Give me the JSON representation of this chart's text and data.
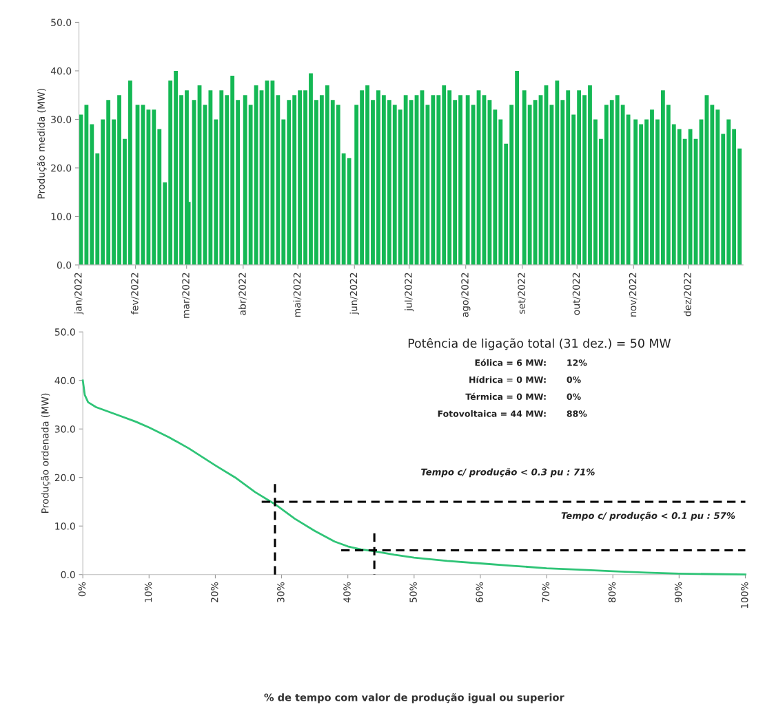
{
  "chart_data": [
    {
      "type": "bar",
      "ylabel": "Produção medida (MW)",
      "color": "#14b854",
      "x": [
        "2022-01-01",
        "2022-01-04",
        "2022-01-07",
        "2022-01-10",
        "2022-01-13",
        "2022-01-16",
        "2022-01-19",
        "2022-01-22",
        "2022-01-25",
        "2022-01-28",
        "2022-02-01",
        "2022-02-04",
        "2022-02-07",
        "2022-02-10",
        "2022-02-13",
        "2022-02-16",
        "2022-02-19",
        "2022-02-22",
        "2022-02-25",
        "2022-02-28",
        "2022-03-01",
        "2022-03-04",
        "2022-03-07",
        "2022-03-10",
        "2022-03-13",
        "2022-03-16",
        "2022-03-19",
        "2022-03-22",
        "2022-03-25",
        "2022-03-28",
        "2022-04-01",
        "2022-04-04",
        "2022-04-07",
        "2022-04-10",
        "2022-04-13",
        "2022-04-16",
        "2022-04-19",
        "2022-04-22",
        "2022-04-25",
        "2022-04-28",
        "2022-05-01",
        "2022-05-04",
        "2022-05-07",
        "2022-05-10",
        "2022-05-13",
        "2022-05-16",
        "2022-05-19",
        "2022-05-22",
        "2022-05-25",
        "2022-05-28",
        "2022-06-01",
        "2022-06-04",
        "2022-06-07",
        "2022-06-10",
        "2022-06-13",
        "2022-06-16",
        "2022-06-19",
        "2022-06-22",
        "2022-06-25",
        "2022-06-28",
        "2022-07-01",
        "2022-07-04",
        "2022-07-07",
        "2022-07-10",
        "2022-07-13",
        "2022-07-16",
        "2022-07-19",
        "2022-07-22",
        "2022-07-25",
        "2022-07-28",
        "2022-08-01",
        "2022-08-04",
        "2022-08-07",
        "2022-08-10",
        "2022-08-13",
        "2022-08-16",
        "2022-08-19",
        "2022-08-22",
        "2022-08-25",
        "2022-08-28",
        "2022-09-01",
        "2022-09-04",
        "2022-09-07",
        "2022-09-10",
        "2022-09-13",
        "2022-09-16",
        "2022-09-19",
        "2022-09-22",
        "2022-09-25",
        "2022-09-28",
        "2022-10-01",
        "2022-10-04",
        "2022-10-07",
        "2022-10-10",
        "2022-10-13",
        "2022-10-16",
        "2022-10-19",
        "2022-10-22",
        "2022-10-25",
        "2022-10-28",
        "2022-11-01",
        "2022-11-04",
        "2022-11-07",
        "2022-11-10",
        "2022-11-13",
        "2022-11-16",
        "2022-11-19",
        "2022-11-22",
        "2022-11-25",
        "2022-11-28",
        "2022-12-01",
        "2022-12-04",
        "2022-12-07",
        "2022-12-10",
        "2022-12-13",
        "2022-12-16",
        "2022-12-19",
        "2022-12-22",
        "2022-12-25",
        "2022-12-28"
      ],
      "values": [
        31,
        33,
        29,
        23,
        30,
        34,
        30,
        35,
        26,
        38,
        33,
        33,
        32,
        32,
        28,
        17,
        38,
        40,
        35,
        36,
        13,
        34,
        37,
        33,
        36,
        30,
        36,
        35,
        39,
        34,
        35,
        33,
        37,
        36,
        38,
        38,
        35,
        30,
        34,
        35,
        36,
        36,
        39.5,
        34,
        35,
        37,
        34,
        33,
        23,
        22,
        33,
        36,
        37,
        34,
        36,
        35,
        34,
        33,
        32,
        35,
        34,
        35,
        36,
        33,
        35,
        35,
        37,
        36,
        34,
        35,
        35,
        33,
        36,
        35,
        34,
        32,
        30,
        25,
        33,
        40,
        36,
        33,
        34,
        35,
        37,
        33,
        38,
        34,
        36,
        31,
        36,
        35,
        37,
        30,
        26,
        33,
        34,
        35,
        33,
        31,
        30,
        29,
        30,
        32,
        30,
        36,
        33,
        29,
        28,
        26,
        28,
        26,
        30,
        35,
        33,
        32,
        27,
        30,
        28,
        24
      ],
      "xlim": [
        "2022-01-01",
        "2022-12-31"
      ],
      "xticks": [
        {
          "value": "2022-01-01",
          "label": "jan/2022"
        },
        {
          "value": "2022-02-01",
          "label": "fev/2022"
        },
        {
          "value": "2022-03-01",
          "label": "mar/2022"
        },
        {
          "value": "2022-04-01",
          "label": "abr/2022"
        },
        {
          "value": "2022-05-01",
          "label": "mai/2022"
        },
        {
          "value": "2022-06-01",
          "label": "jun/2022"
        },
        {
          "value": "2022-07-01",
          "label": "jul/2022"
        },
        {
          "value": "2022-08-01",
          "label": "ago/2022"
        },
        {
          "value": "2022-09-01",
          "label": "set/2022"
        },
        {
          "value": "2022-10-01",
          "label": "out/2022"
        },
        {
          "value": "2022-11-01",
          "label": "nov/2022"
        },
        {
          "value": "2022-12-01",
          "label": "dez/2022"
        }
      ],
      "ylim": [
        0,
        50
      ],
      "yticks": [
        {
          "value": 0,
          "label": "0.0"
        },
        {
          "value": 10,
          "label": "10.0"
        },
        {
          "value": 20,
          "label": "20.0"
        },
        {
          "value": 30,
          "label": "30.0"
        },
        {
          "value": 40,
          "label": "40.0"
        },
        {
          "value": 50,
          "label": "50.0"
        }
      ],
      "grid": false,
      "legend": false
    },
    {
      "type": "line",
      "ylabel": "Produção ordenada (MW)",
      "xlabel": "% de tempo com valor de produção igual ou superior",
      "series": [
        {
          "color": "#2fc477",
          "x": [
            0,
            0.3,
            0.8,
            2,
            5,
            8,
            10,
            13,
            16,
            20,
            23,
            26,
            29,
            32,
            35,
            38,
            40,
            42,
            44,
            47,
            50,
            55,
            60,
            65,
            70,
            75,
            80,
            85,
            90,
            95,
            100
          ],
          "values": [
            40,
            37,
            35.5,
            34.5,
            33,
            31.5,
            30.3,
            28.3,
            26,
            22.5,
            20,
            17,
            14.5,
            11.5,
            9,
            6.8,
            5.8,
            5.2,
            4.8,
            4.1,
            3.5,
            2.8,
            2.3,
            1.8,
            1.3,
            1,
            0.7,
            0.4,
            0.2,
            0.1,
            0
          ]
        },
        {
          "color": "#000000",
          "line_style": "dashed",
          "x": [
            27,
            100
          ],
          "values": [
            15,
            15
          ]
        },
        {
          "color": "#000000",
          "line_style": "dashed",
          "x": [
            39,
            100
          ],
          "values": [
            5,
            5
          ]
        },
        {
          "color": "#000000",
          "line_style": "dashed",
          "x": [
            29,
            29
          ],
          "values": [
            0,
            19
          ]
        },
        {
          "color": "#000000",
          "line_style": "dashed",
          "x": [
            44,
            44
          ],
          "values": [
            8.5,
            0
          ]
        }
      ],
      "annotations": [
        "Potência de ligação total (31 dez.) = 50 MW",
        "Eólica = 6 MW:",
        "12%",
        "Hídrica = 0 MW:",
        "0%",
        "Térmica = 0 MW:",
        "0%",
        "Fotovoltaica = 44 MW:",
        "88%",
        "Tempo c/ produção < 0.3 pu : 71%",
        "Tempo c/ produção < 0.1 pu : 57%"
      ],
      "xlim": [
        0,
        100
      ],
      "xticks": [
        {
          "value": 0,
          "label": "0%"
        },
        {
          "value": 10,
          "label": "10%"
        },
        {
          "value": 20,
          "label": "20%"
        },
        {
          "value": 30,
          "label": "30%"
        },
        {
          "value": 40,
          "label": "40%"
        },
        {
          "value": 50,
          "label": "50%"
        },
        {
          "value": 60,
          "label": "60%"
        },
        {
          "value": 70,
          "label": "70%"
        },
        {
          "value": 80,
          "label": "80%"
        },
        {
          "value": 90,
          "label": "90%"
        },
        {
          "value": 100,
          "label": "100%"
        }
      ],
      "ylim": [
        0,
        50
      ],
      "yticks": [
        {
          "value": 0,
          "label": "0.0"
        },
        {
          "value": 10,
          "label": "10.0"
        },
        {
          "value": 20,
          "label": "20.0"
        },
        {
          "value": 30,
          "label": "30.0"
        },
        {
          "value": 40,
          "label": "40.0"
        },
        {
          "value": 50,
          "label": "50.0"
        }
      ],
      "grid": false,
      "legend": false
    }
  ]
}
